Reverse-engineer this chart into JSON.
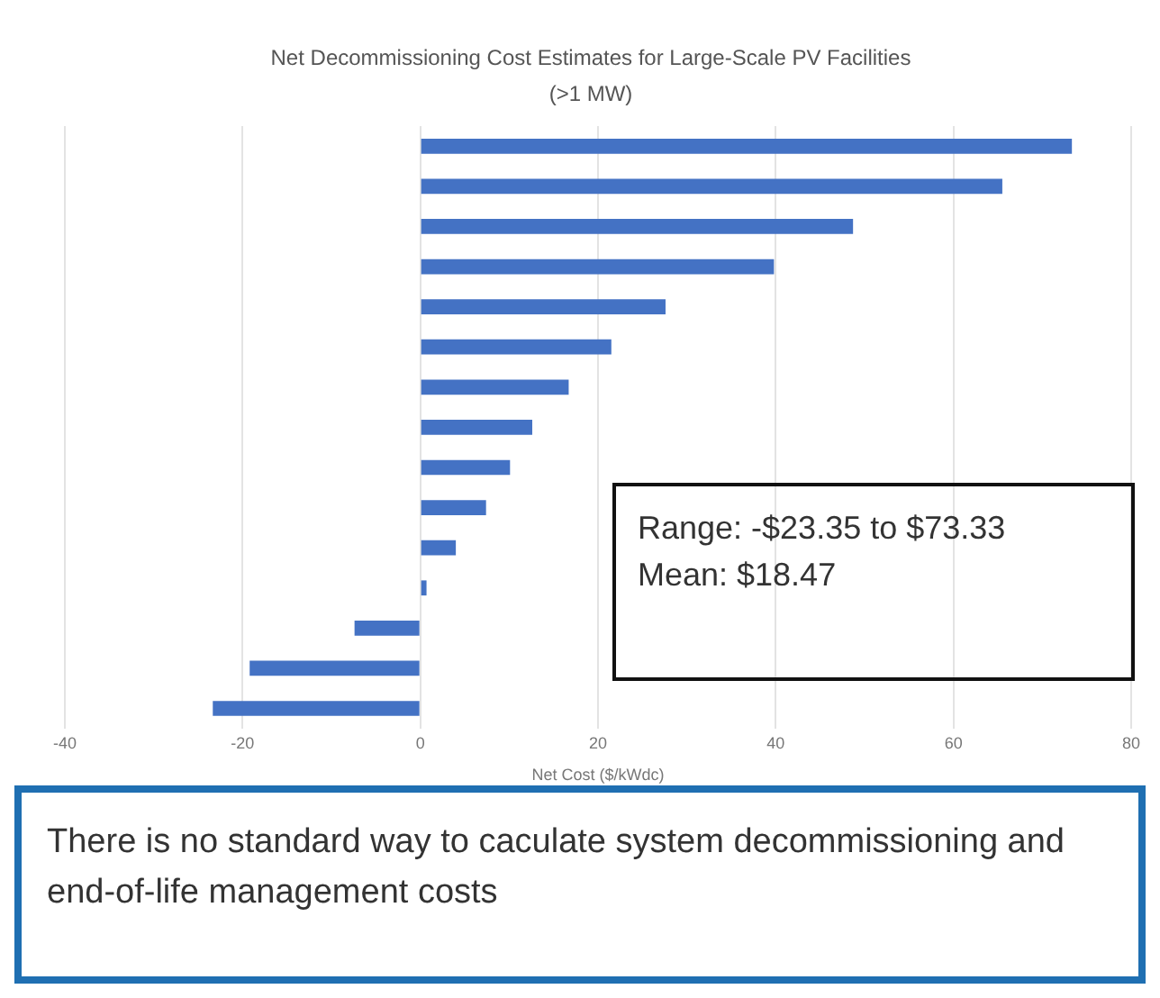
{
  "chart_data": {
    "type": "bar",
    "orientation": "horizontal",
    "title": "Net Decommissioning Cost Estimates for Large-Scale PV Facilities (>1 MW)",
    "xlabel": "Net Cost ($/kWdc)",
    "categories": [
      null,
      null,
      null,
      null,
      null,
      null,
      null,
      null,
      null,
      null,
      null,
      null,
      null,
      null,
      null
    ],
    "values": [
      73.33,
      65.5,
      48.7,
      39.8,
      27.6,
      21.5,
      16.7,
      12.6,
      10.1,
      7.4,
      4.0,
      0.7,
      -7.4,
      -19.2,
      -23.35
    ],
    "color": "#4472c4",
    "xlim": [
      -40,
      80
    ],
    "xticks": [
      -40,
      -20,
      0,
      20,
      40,
      60,
      80
    ],
    "grid": "x",
    "tick_labels": "x",
    "annotations": [
      "Range: -$23.35 to $73.33\nMean: $18.47",
      "There is no standard way to caculate system decommissioning and end-of-life management costs"
    ]
  }
}
